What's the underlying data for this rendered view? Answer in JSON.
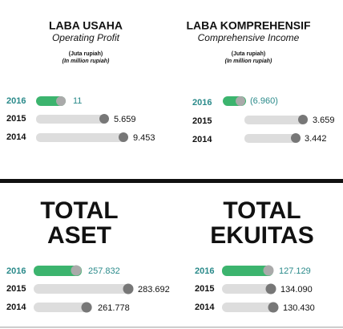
{
  "top_panels": [
    {
      "title": "LABA USAHA",
      "subtitle": "Operating Profit",
      "unit": "(Juta rupiah)",
      "unit_en": "(In million rupiah)",
      "rows": [
        {
          "year": "2016",
          "value": "11"
        },
        {
          "year": "2015",
          "value": "5.659"
        },
        {
          "year": "2014",
          "value": "9.453"
        }
      ]
    },
    {
      "title": "LABA KOMPREHENSIF",
      "subtitle": "Comprehensive Income",
      "unit": "(Juta rupiah)",
      "unit_en": "(In million rupiah)",
      "rows": [
        {
          "year": "2016",
          "value": "(6.960)"
        },
        {
          "year": "2015",
          "value": "3.659"
        },
        {
          "year": "2014",
          "value": "3.442"
        }
      ]
    }
  ],
  "bottom_panels": [
    {
      "title_lines": [
        "TOTAL",
        "ASET"
      ],
      "rows": [
        {
          "year": "2016",
          "value": "257.832"
        },
        {
          "year": "2015",
          "value": "283.692"
        },
        {
          "year": "2014",
          "value": "261.778"
        }
      ]
    },
    {
      "title_lines": [
        "TOTAL",
        "EKUITAS"
      ],
      "rows": [
        {
          "year": "2016",
          "value": "127.129"
        },
        {
          "year": "2015",
          "value": "134.090"
        },
        {
          "year": "2014",
          "value": "130.430"
        }
      ]
    }
  ]
}
